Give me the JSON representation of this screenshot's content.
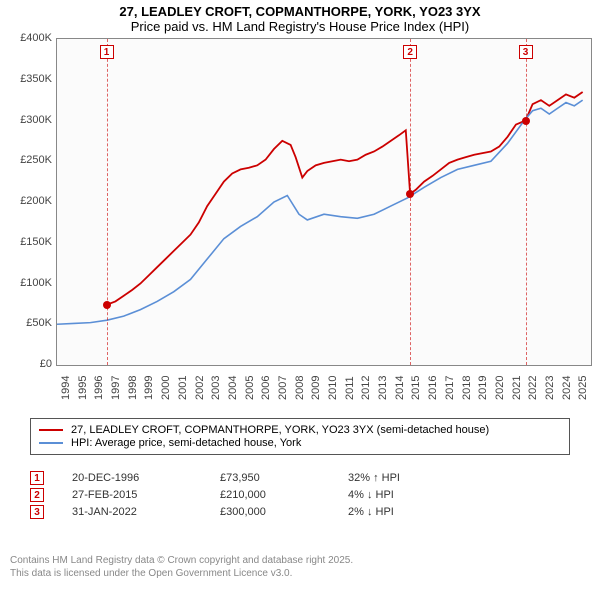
{
  "title": {
    "line1": "27, LEADLEY CROFT, COPMANTHORPE, YORK, YO23 3YX",
    "line2": "Price paid vs. HM Land Registry's House Price Index (HPI)"
  },
  "chart": {
    "background_color": "#fbfbfb",
    "axis_color": "#888888",
    "x": {
      "min": 1994,
      "max": 2026,
      "tick_step": 1
    },
    "y": {
      "min": 0,
      "max": 400000,
      "ticks": [
        0,
        50000,
        100000,
        150000,
        200000,
        250000,
        300000,
        350000,
        400000
      ],
      "labels": [
        "£0",
        "£50K",
        "£100K",
        "£150K",
        "£200K",
        "£250K",
        "£300K",
        "£350K",
        "£400K"
      ]
    },
    "series": [
      {
        "name": "27, LEADLEY CROFT, COPMANTHORPE, YORK, YO23 3YX (semi-detached house)",
        "color": "#cc0000",
        "line_width": 1.8,
        "points": [
          [
            1996.97,
            73950
          ],
          [
            1997.5,
            78000
          ],
          [
            1998,
            85000
          ],
          [
            1998.5,
            92000
          ],
          [
            1999,
            100000
          ],
          [
            1999.5,
            110000
          ],
          [
            2000,
            120000
          ],
          [
            2000.5,
            130000
          ],
          [
            2001,
            140000
          ],
          [
            2001.5,
            150000
          ],
          [
            2002,
            160000
          ],
          [
            2002.5,
            175000
          ],
          [
            2003,
            195000
          ],
          [
            2003.5,
            210000
          ],
          [
            2004,
            225000
          ],
          [
            2004.5,
            235000
          ],
          [
            2005,
            240000
          ],
          [
            2005.5,
            242000
          ],
          [
            2006,
            245000
          ],
          [
            2006.5,
            252000
          ],
          [
            2007,
            265000
          ],
          [
            2007.5,
            275000
          ],
          [
            2008,
            270000
          ],
          [
            2008.3,
            255000
          ],
          [
            2008.7,
            230000
          ],
          [
            2009,
            238000
          ],
          [
            2009.5,
            245000
          ],
          [
            2010,
            248000
          ],
          [
            2010.5,
            250000
          ],
          [
            2011,
            252000
          ],
          [
            2011.5,
            250000
          ],
          [
            2012,
            252000
          ],
          [
            2012.5,
            258000
          ],
          [
            2013,
            262000
          ],
          [
            2013.5,
            268000
          ],
          [
            2014,
            275000
          ],
          [
            2014.5,
            282000
          ],
          [
            2014.9,
            288000
          ],
          [
            2015.16,
            210000
          ],
          [
            2015.5,
            215000
          ],
          [
            2016,
            225000
          ],
          [
            2016.5,
            232000
          ],
          [
            2017,
            240000
          ],
          [
            2017.5,
            248000
          ],
          [
            2018,
            252000
          ],
          [
            2018.5,
            255000
          ],
          [
            2019,
            258000
          ],
          [
            2019.5,
            260000
          ],
          [
            2020,
            262000
          ],
          [
            2020.5,
            268000
          ],
          [
            2021,
            280000
          ],
          [
            2021.5,
            295000
          ],
          [
            2022.08,
            300000
          ],
          [
            2022.5,
            320000
          ],
          [
            2023,
            325000
          ],
          [
            2023.5,
            318000
          ],
          [
            2024,
            325000
          ],
          [
            2024.5,
            332000
          ],
          [
            2025,
            328000
          ],
          [
            2025.5,
            335000
          ]
        ]
      },
      {
        "name": "HPI: Average price, semi-detached house, York",
        "color": "#5b8fd6",
        "line_width": 1.6,
        "points": [
          [
            1994,
            50000
          ],
          [
            1995,
            51000
          ],
          [
            1996,
            52000
          ],
          [
            1997,
            55000
          ],
          [
            1998,
            60000
          ],
          [
            1999,
            68000
          ],
          [
            2000,
            78000
          ],
          [
            2001,
            90000
          ],
          [
            2002,
            105000
          ],
          [
            2003,
            130000
          ],
          [
            2004,
            155000
          ],
          [
            2005,
            170000
          ],
          [
            2006,
            182000
          ],
          [
            2007,
            200000
          ],
          [
            2007.8,
            208000
          ],
          [
            2008.5,
            185000
          ],
          [
            2009,
            178000
          ],
          [
            2010,
            185000
          ],
          [
            2011,
            182000
          ],
          [
            2012,
            180000
          ],
          [
            2013,
            185000
          ],
          [
            2014,
            195000
          ],
          [
            2015,
            205000
          ],
          [
            2016,
            218000
          ],
          [
            2017,
            230000
          ],
          [
            2018,
            240000
          ],
          [
            2019,
            245000
          ],
          [
            2020,
            250000
          ],
          [
            2021,
            272000
          ],
          [
            2022,
            300000
          ],
          [
            2022.5,
            312000
          ],
          [
            2023,
            315000
          ],
          [
            2023.5,
            308000
          ],
          [
            2024,
            315000
          ],
          [
            2024.5,
            322000
          ],
          [
            2025,
            318000
          ],
          [
            2025.5,
            325000
          ]
        ]
      }
    ],
    "sale_markers": [
      {
        "n": "1",
        "year": 1996.97,
        "price": 73950
      },
      {
        "n": "2",
        "year": 2015.16,
        "price": 210000
      },
      {
        "n": "3",
        "year": 2022.08,
        "price": 300000
      }
    ]
  },
  "legend": {
    "items": [
      {
        "label": "27, LEADLEY CROFT, COPMANTHORPE, YORK, YO23 3YX (semi-detached house)",
        "color": "#cc0000"
      },
      {
        "label": "HPI: Average price, semi-detached house, York",
        "color": "#5b8fd6"
      }
    ]
  },
  "sales": [
    {
      "n": "1",
      "date": "20-DEC-1996",
      "price": "£73,950",
      "diff": "32% ↑ HPI"
    },
    {
      "n": "2",
      "date": "27-FEB-2015",
      "price": "£210,000",
      "diff": "4% ↓ HPI"
    },
    {
      "n": "3",
      "date": "31-JAN-2022",
      "price": "£300,000",
      "diff": "2% ↓ HPI"
    }
  ],
  "footnote": {
    "line1": "Contains HM Land Registry data © Crown copyright and database right 2025.",
    "line2": "This data is licensed under the Open Government Licence v3.0."
  }
}
